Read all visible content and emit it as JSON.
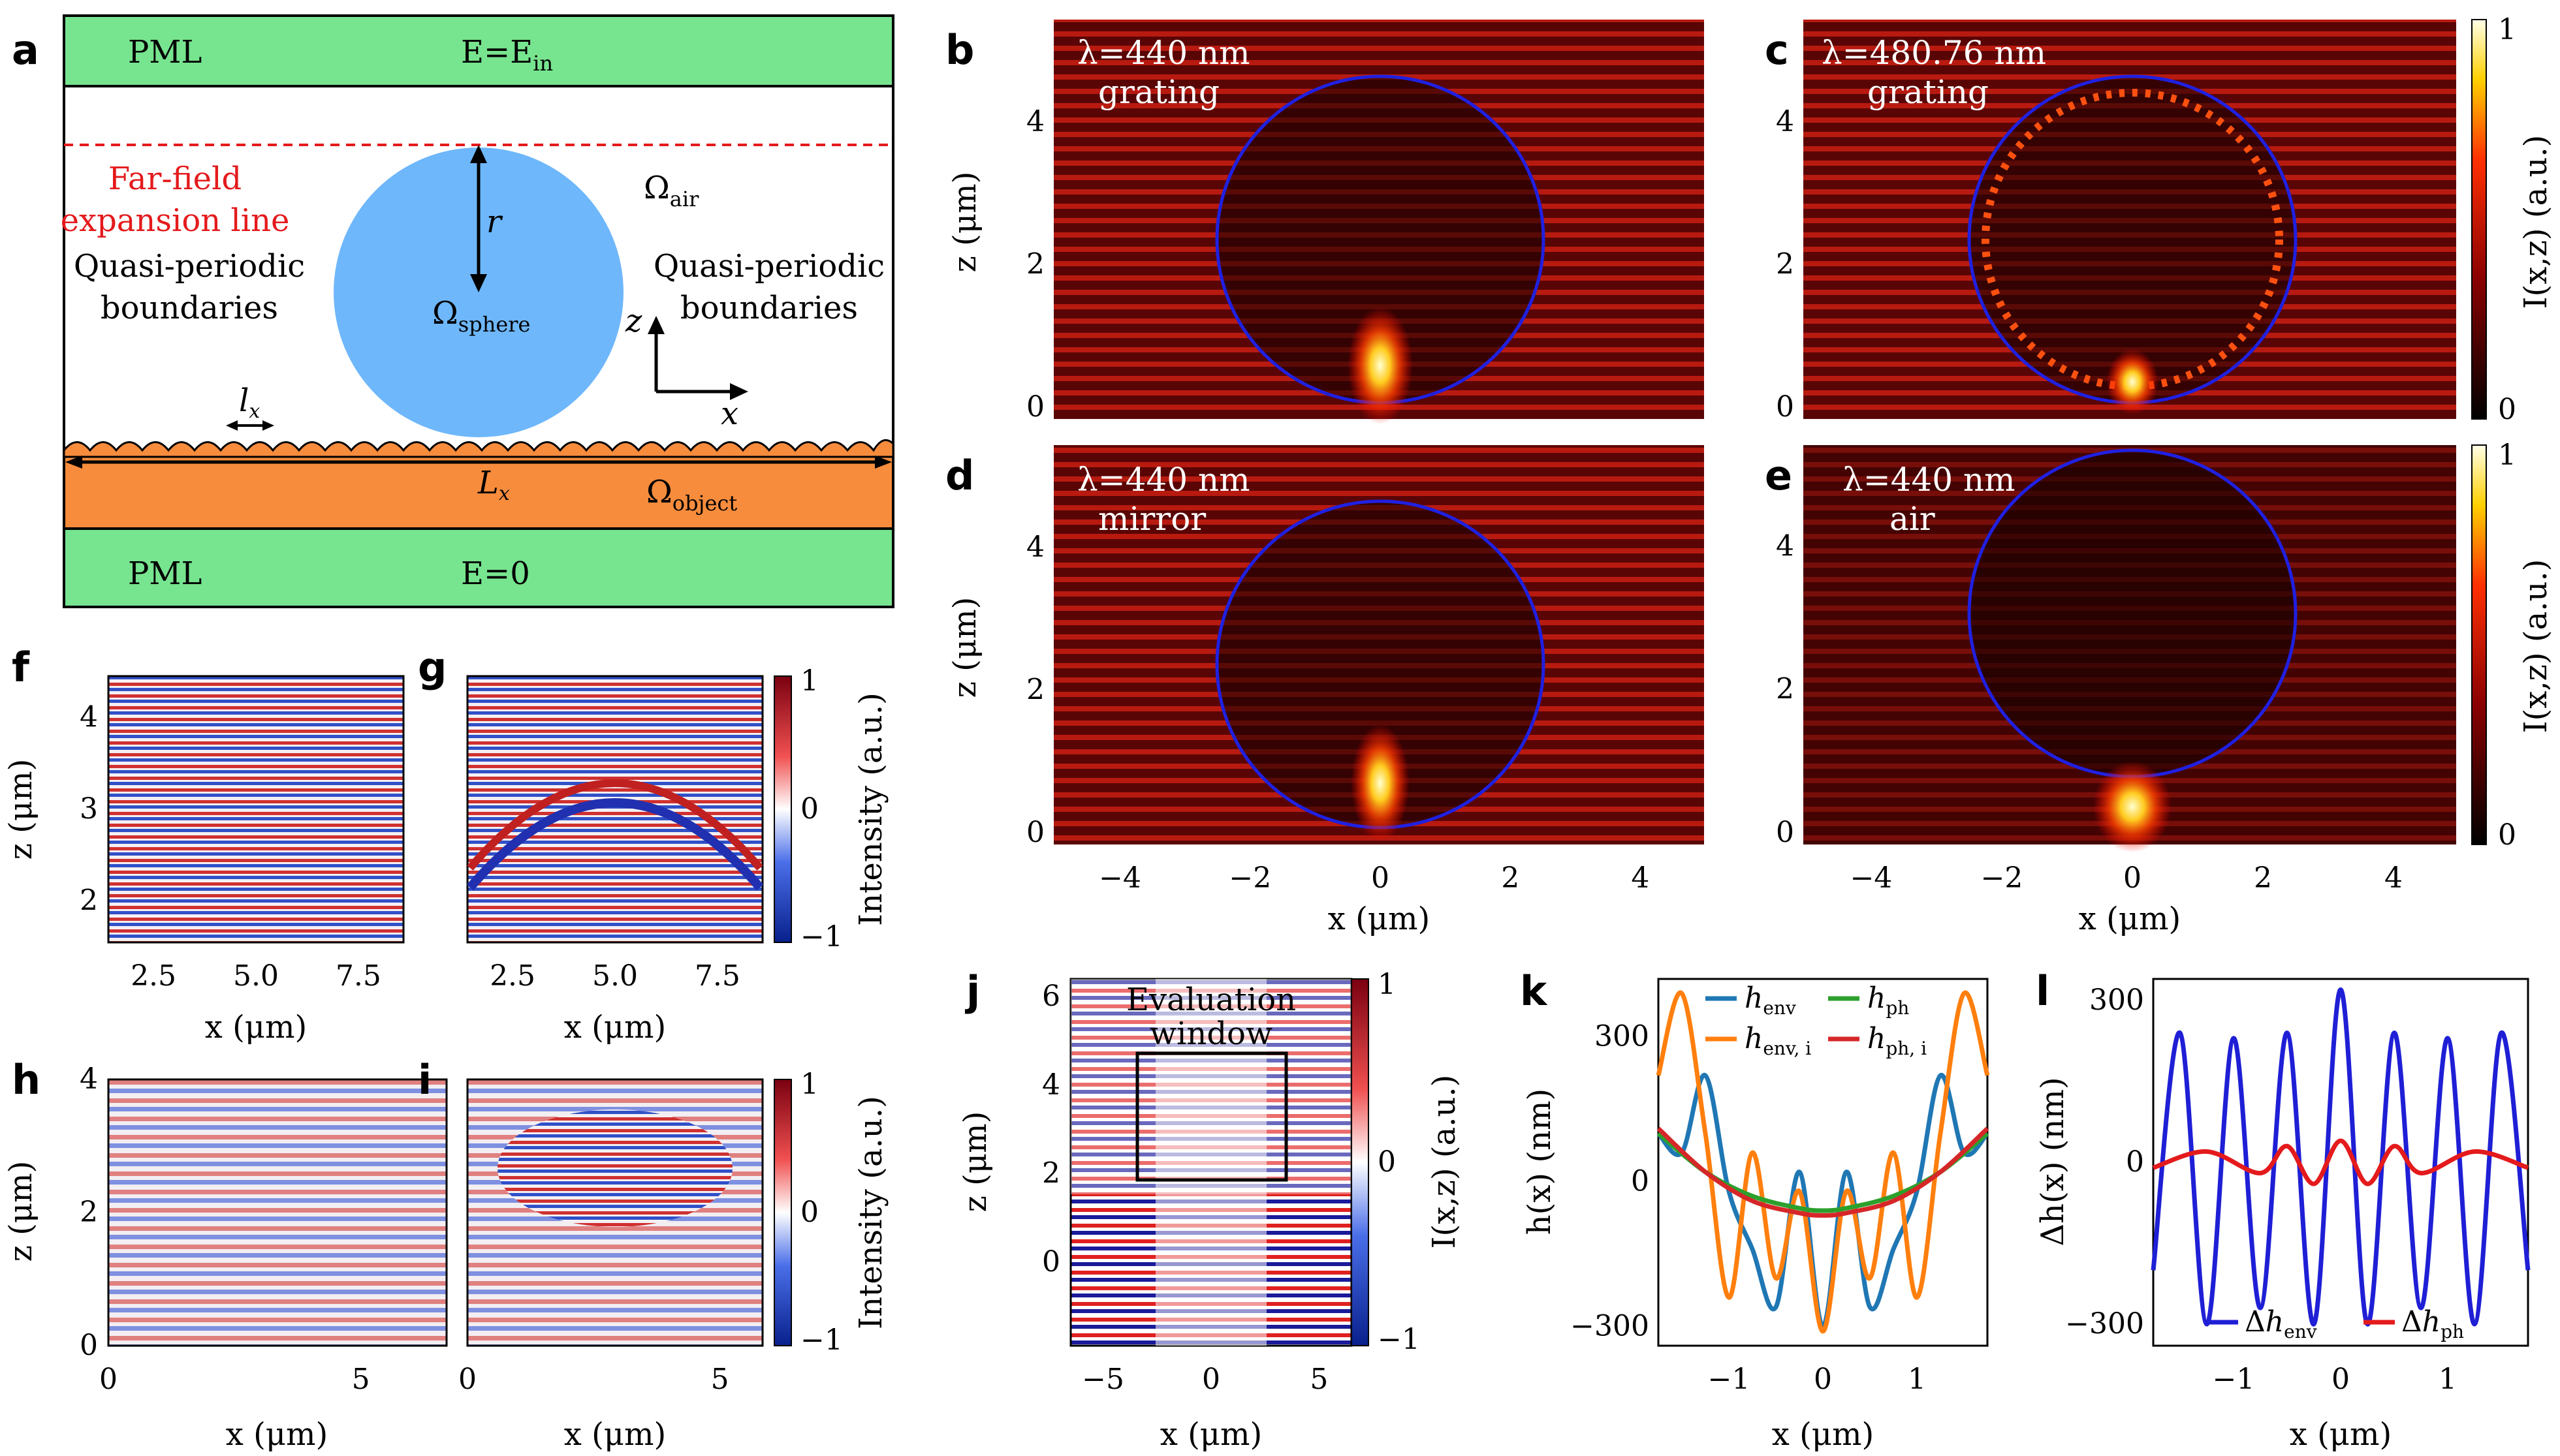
{
  "panels": {
    "a": {
      "label": "a",
      "pml_top": "PML",
      "e_top": "E=E",
      "e_top_sub": "in",
      "pml_bottom": "PML",
      "e_bottom": "E=0",
      "far_field_1": "Far-field",
      "far_field_2": "expansion line",
      "quasi_left_1": "Quasi-periodic",
      "quasi_left_2": "boundaries",
      "quasi_right_1": "Quasi-periodic",
      "quasi_right_2": "boundaries",
      "omega": "Ω",
      "sub_air": "air",
      "sub_sphere": "sphere",
      "sub_object": "object",
      "r": "r",
      "z": "z",
      "x": "x",
      "lx": "l",
      "Lx": "L",
      "x_sub": "x",
      "colors": {
        "pml": "#77e48f",
        "sphere": "#6eb7fb",
        "object": "#f78c3d",
        "far_field": "#e41a1c"
      }
    },
    "b": {
      "label": "b",
      "line1": "λ=440 nm",
      "line2": "grating"
    },
    "c": {
      "label": "c",
      "line1": "λ=480.76 nm",
      "line2": "grating"
    },
    "d": {
      "label": "d",
      "line1": "λ=440 nm",
      "line2": "mirror"
    },
    "e": {
      "label": "e",
      "line1": "λ=440 nm",
      "line2": "air"
    },
    "f": {
      "label": "f"
    },
    "g": {
      "label": "g"
    },
    "h": {
      "label": "h"
    },
    "i": {
      "label": "i"
    },
    "j": {
      "label": "j",
      "window_1": "Evaluation",
      "window_2": "window"
    },
    "k": {
      "label": "k"
    },
    "l": {
      "label": "l"
    }
  },
  "axes": {
    "x_um": "x (μm)",
    "z_um": "z (μm)",
    "I_xz": "I(x,z) (a.u.)",
    "intensity": "Intensity (a.u.)",
    "h_x": "h(x) (nm)",
    "dh_x": "Δh(x) (nm)",
    "z_ticks_bd": [
      "0",
      "2",
      "4"
    ],
    "x_ticks_de": [
      "−4",
      "−2",
      "0",
      "2",
      "4"
    ],
    "cbar_0_1": [
      "0",
      "1"
    ],
    "cbar_m1_1": [
      "−1",
      "0",
      "1"
    ],
    "fg_x_ticks": [
      "2.5",
      "5.0",
      "7.5"
    ],
    "fg_z_ticks": [
      "2",
      "3",
      "4"
    ],
    "hi_x_ticks": [
      "0",
      "5"
    ],
    "hi_z_ticks": [
      "0",
      "2",
      "4"
    ],
    "j_x_ticks": [
      "−5",
      "0",
      "5"
    ],
    "j_z_ticks": [
      "0",
      "2",
      "4",
      "6"
    ],
    "kl_x_ticks": [
      "−1",
      "0",
      "1"
    ],
    "kl_y_ticks": [
      "−300",
      "0",
      "300"
    ]
  },
  "chart_data": [
    {
      "type": "line",
      "panel": "k",
      "xlabel": "x (μm)",
      "ylabel": "h(x) (nm)",
      "xlim": [
        -1.75,
        1.75
      ],
      "ylim": [
        -340,
        420
      ],
      "series": [
        {
          "name": "h_env",
          "color": "#1f77b4",
          "x": [
            -1.75,
            -1.5,
            -1.25,
            -1.0,
            -0.75,
            -0.5,
            -0.25,
            0,
            0.25,
            0.5,
            0.75,
            1.0,
            1.25,
            1.5,
            1.75
          ],
          "y": [
            100,
            60,
            220,
            -20,
            -140,
            -260,
            20,
            -300,
            20,
            -260,
            -140,
            -20,
            220,
            60,
            100
          ]
        },
        {
          "name": "h_env, i",
          "color": "#ff7f0e",
          "x": [
            -1.75,
            -1.5,
            -1.25,
            -1.0,
            -0.75,
            -0.5,
            -0.25,
            0,
            0.25,
            0.5,
            0.75,
            1.0,
            1.25,
            1.5,
            1.75
          ],
          "y": [
            220,
            390,
            100,
            -240,
            60,
            -200,
            -20,
            -310,
            -20,
            -200,
            60,
            -240,
            100,
            390,
            220
          ]
        },
        {
          "name": "h_ph",
          "color": "#2ca02c",
          "x": [
            -1.75,
            -1.25,
            -0.75,
            -0.25,
            0,
            0.25,
            0.75,
            1.25,
            1.75
          ],
          "y": [
            100,
            20,
            -30,
            -55,
            -60,
            -55,
            -30,
            20,
            100
          ]
        },
        {
          "name": "h_ph, i",
          "color": "#d62728",
          "x": [
            -1.75,
            -1.25,
            -0.75,
            -0.25,
            0,
            0.25,
            0.75,
            1.25,
            1.75
          ],
          "y": [
            110,
            20,
            -40,
            -65,
            -70,
            -65,
            -40,
            20,
            110
          ]
        }
      ],
      "legend": "top"
    },
    {
      "type": "line",
      "panel": "l",
      "xlabel": "x (μm)",
      "ylabel": "Δh(x) (nm)",
      "xlim": [
        -1.75,
        1.75
      ],
      "ylim": [
        -340,
        340
      ],
      "series": [
        {
          "name": "Δh_env",
          "color": "#1f1fd6",
          "x": [
            -1.75,
            -1.5,
            -1.25,
            -1.0,
            -0.75,
            -0.5,
            -0.25,
            0,
            0.25,
            0.5,
            0.75,
            1.0,
            1.25,
            1.5,
            1.75
          ],
          "y": [
            -200,
            240,
            -300,
            230,
            -270,
            240,
            -300,
            320,
            -300,
            240,
            -270,
            230,
            -300,
            240,
            -200
          ]
        },
        {
          "name": "Δh_ph",
          "color": "#e41a1c",
          "x": [
            -1.75,
            -1.25,
            -0.75,
            -0.5,
            -0.25,
            0,
            0.25,
            0.5,
            0.75,
            1.25,
            1.75
          ],
          "y": [
            -10,
            20,
            -20,
            30,
            -40,
            40,
            -40,
            30,
            -20,
            20,
            -10
          ]
        }
      ],
      "legend": "bottom"
    }
  ]
}
